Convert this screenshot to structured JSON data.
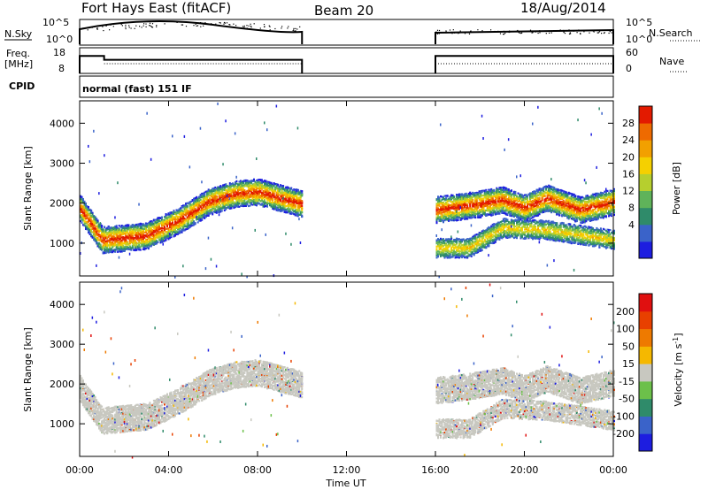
{
  "chart_data": [
    {
      "type": "line",
      "panel": "noise",
      "title": "Fort Hays East (fitACF)",
      "subtitle": "Beam 20",
      "date": "18/Aug/2014",
      "left_label": "N.Sky",
      "right_label": "N.Search",
      "yticks_left": [
        "10^5",
        "10^0"
      ],
      "yticks_right": [
        "10^5",
        "10^0"
      ]
    },
    {
      "type": "line",
      "panel": "frequency",
      "left_label_1": "Freq.",
      "left_label_2": "[MHz]",
      "right_label": "Nave",
      "yticks_left": [
        "18",
        "8"
      ],
      "yticks_right": [
        "60",
        "0"
      ],
      "freq_values": [
        17,
        15
      ],
      "nave_values": [
        22
      ]
    },
    {
      "type": "table",
      "panel": "cpid",
      "label": "CPID",
      "mode_text": "normal (fast) 151 IF"
    },
    {
      "type": "heatmap",
      "panel": "power",
      "ylabel": "Slant Range [km]",
      "ylim": [
        180,
        4560
      ],
      "yticks": [
        "1000",
        "2000",
        "3000",
        "4000"
      ],
      "xlim": [
        0,
        24
      ],
      "colorbar_label": "Power [dB]",
      "colorbar_ticks": [
        "28",
        "24",
        "20",
        "16",
        "12",
        "8",
        "4"
      ],
      "colors": [
        "#1d1de0",
        "#3a63c9",
        "#2f8b6a",
        "#5fb35a",
        "#b6cf2e",
        "#f5d000",
        "#f2a000",
        "#ee6a00",
        "#e31a00"
      ],
      "data_gap_hours": [
        10,
        16
      ],
      "band_main_range_km": [
        [
          0,
          1900
        ],
        [
          1,
          1100
        ],
        [
          3,
          1200
        ],
        [
          4.5,
          1600
        ],
        [
          5.8,
          2050
        ],
        [
          7,
          2250
        ],
        [
          8,
          2300
        ],
        [
          10,
          2000
        ],
        [
          16,
          1850
        ],
        [
          18,
          2000
        ],
        [
          19,
          2100
        ],
        [
          20,
          1900
        ],
        [
          21,
          2150
        ],
        [
          22.5,
          1850
        ],
        [
          24,
          2050
        ]
      ],
      "band_second_range_km": [
        [
          16,
          900
        ],
        [
          17.5,
          900
        ],
        [
          19,
          1400
        ],
        [
          21,
          1350
        ],
        [
          24,
          1100
        ]
      ]
    },
    {
      "type": "heatmap",
      "panel": "velocity",
      "ylabel": "Slant Range [km]",
      "ylim": [
        180,
        4560
      ],
      "yticks": [
        "1000",
        "2000",
        "3000",
        "4000"
      ],
      "xlabel": "Time UT",
      "xticks": [
        "00:00",
        "04:00",
        "08:00",
        "12:00",
        "16:00",
        "20:00",
        "00:00"
      ],
      "xtick_hours": [
        0,
        4,
        8,
        12,
        16,
        20,
        24
      ],
      "colorbar_label": "Velocity [m s",
      "colorbar_label_sup": "-1",
      "colorbar_label_end": "]",
      "colorbar_ticks": [
        "200",
        "100",
        "50",
        "15",
        "-15",
        "-50",
        "-100",
        "-200"
      ],
      "colors": [
        "#1d1de0",
        "#3a63c9",
        "#2f8b6a",
        "#6cc04a",
        "#c8c8c0",
        "#f5b800",
        "#ee7a00",
        "#e84000",
        "#e01010"
      ]
    }
  ]
}
